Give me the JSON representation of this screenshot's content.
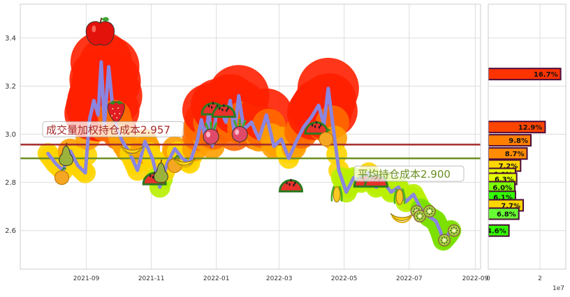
{
  "chart_data": [
    {
      "type": "line",
      "y_ticks": [
        2.6,
        2.8,
        3.0,
        3.2,
        3.4
      ],
      "ylim": [
        2.44,
        3.54
      ],
      "x_ticks": [
        "2021-09",
        "2021-11",
        "2022-01",
        "2022-03",
        "2022-05",
        "2022-07",
        "2022-09"
      ],
      "xlim": [
        "2021-07-01",
        "2022-09-06"
      ],
      "grid": true,
      "series": [
        {
          "role": "price",
          "color": "#8a85e0",
          "x": [
            "2021-07-27",
            "2021-08-03",
            "2021-08-10",
            "2021-08-17",
            "2021-08-24",
            "2021-08-31",
            "2021-09-04",
            "2021-09-08",
            "2021-09-12",
            "2021-09-15",
            "2021-09-18",
            "2021-09-22",
            "2021-09-26",
            "2021-09-30",
            "2021-10-05",
            "2021-10-12",
            "2021-10-19",
            "2021-10-26",
            "2021-11-02",
            "2021-11-09",
            "2021-11-16",
            "2021-11-23",
            "2021-11-30",
            "2021-12-07",
            "2021-12-14",
            "2021-12-18",
            "2021-12-22",
            "2021-12-25",
            "2021-12-28",
            "2022-01-02",
            "2022-01-06",
            "2022-01-10",
            "2022-01-14",
            "2022-01-18",
            "2022-01-22",
            "2022-01-27",
            "2022-02-03",
            "2022-02-10",
            "2022-02-17",
            "2022-02-24",
            "2022-03-03",
            "2022-03-10",
            "2022-03-17",
            "2022-03-24",
            "2022-03-31",
            "2022-04-07",
            "2022-04-12",
            "2022-04-16",
            "2022-04-20",
            "2022-04-26",
            "2022-05-03",
            "2022-05-10",
            "2022-05-17",
            "2022-05-24",
            "2022-05-31",
            "2022-06-07",
            "2022-06-14",
            "2022-06-21",
            "2022-06-28",
            "2022-07-05",
            "2022-07-12",
            "2022-07-19",
            "2022-07-26",
            "2022-07-30",
            "2022-08-02",
            "2022-08-06",
            "2022-08-09"
          ],
          "y": [
            2.92,
            2.88,
            2.85,
            2.93,
            2.87,
            2.84,
            3.06,
            3.14,
            3.08,
            3.3,
            3.04,
            3.28,
            3.1,
            3.02,
            2.97,
            2.92,
            2.85,
            2.97,
            2.9,
            2.78,
            2.88,
            2.94,
            2.9,
            2.88,
            2.97,
            3.06,
            2.98,
            3.1,
            2.95,
            3.12,
            3.09,
            3.05,
            3.14,
            3.0,
            3.16,
            3.02,
            3.05,
            2.98,
            3.08,
            2.95,
            2.98,
            2.9,
            2.97,
            3.03,
            3.07,
            3.12,
            3.04,
            3.19,
            3.05,
            2.85,
            2.76,
            2.82,
            2.8,
            2.84,
            2.78,
            2.8,
            2.76,
            2.78,
            2.72,
            2.75,
            2.69,
            2.66,
            2.64,
            2.6,
            2.56,
            2.58,
            2.6
          ]
        }
      ],
      "reference_lines": [
        {
          "label": "成交量加权持仓成本2.957",
          "value": 2.957,
          "color": "#a52a2a",
          "text_color": "#a52a2a"
        },
        {
          "label": "平均持仓成本2.900",
          "value": 2.9,
          "color": "#6b8e23",
          "text_color": "#6b8e23"
        }
      ],
      "fruit_markers": [
        {
          "icon": "apple-icon",
          "x": "2021-09-14",
          "y": 3.42
        },
        {
          "icon": "strawberry-icon",
          "x": "2021-09-29",
          "y": 3.1
        },
        {
          "icon": "pear-icon",
          "x": "2021-08-13",
          "y": 2.91
        },
        {
          "icon": "orange-icon",
          "x": "2021-08-09",
          "y": 2.82
        },
        {
          "icon": "banana-icon",
          "x": "2021-10-14",
          "y": 2.94
        },
        {
          "icon": "watermelon-icon",
          "x": "2021-11-04",
          "y": 2.81
        },
        {
          "icon": "pear-icon",
          "x": "2021-11-10",
          "y": 2.84
        },
        {
          "icon": "orange-icon",
          "x": "2021-11-23",
          "y": 2.87
        },
        {
          "icon": "banana-icon",
          "x": "2021-12-02",
          "y": 2.89
        },
        {
          "icon": "watermelon-icon",
          "x": "2021-12-29",
          "y": 3.1
        },
        {
          "icon": "watermelon-icon",
          "x": "2022-01-08",
          "y": 3.09
        },
        {
          "icon": "radish-icon",
          "x": "2021-12-27",
          "y": 2.99
        },
        {
          "icon": "radish-icon",
          "x": "2022-01-23",
          "y": 3.0
        },
        {
          "icon": "watermelon-icon",
          "x": "2022-03-12",
          "y": 2.78
        },
        {
          "icon": "watermelon-icon",
          "x": "2022-04-05",
          "y": 3.02
        },
        {
          "icon": "orange-icon",
          "x": "2022-04-14",
          "y": 2.98
        },
        {
          "icon": "corn-icon",
          "x": "2022-04-24",
          "y": 2.75
        },
        {
          "icon": "watermelon-icon",
          "x": "2022-05-21",
          "y": 2.8
        },
        {
          "icon": "watermelon-icon",
          "x": "2022-05-31",
          "y": 2.8
        },
        {
          "icon": "corn-icon",
          "x": "2022-06-22",
          "y": 2.74
        },
        {
          "icon": "banana-icon",
          "x": "2022-06-24",
          "y": 2.66
        },
        {
          "icon": "kiwi-icon",
          "x": "2022-07-08",
          "y": 2.68
        },
        {
          "icon": "kiwi-icon",
          "x": "2022-07-11",
          "y": 2.66
        },
        {
          "icon": "kiwi-icon",
          "x": "2022-07-20",
          "y": 2.68
        },
        {
          "icon": "kiwi-icon",
          "x": "2022-08-03",
          "y": 2.56
        },
        {
          "icon": "kiwi-icon",
          "x": "2022-08-12",
          "y": 2.6
        }
      ]
    },
    {
      "type": "bar",
      "orientation": "horizontal",
      "x_ticks": [
        "0",
        "2"
      ],
      "x_unit_label": "1e7",
      "bars": [
        {
          "y": 3.25,
          "value": 2.8,
          "label": "16.7%",
          "color": "#ff3300"
        },
        {
          "y": 3.03,
          "value": 2.2,
          "label": "12.9%",
          "color": "#ff4500"
        },
        {
          "y": 2.975,
          "value": 1.65,
          "label": "9.8%",
          "color": "#ff7f00"
        },
        {
          "y": 2.92,
          "value": 1.5,
          "label": "8.7%",
          "color": "#ff8c00"
        },
        {
          "y": 2.87,
          "value": 1.25,
          "label": "7.2%",
          "color": "#ffd700"
        },
        {
          "y": 2.835,
          "value": 1.05,
          "label": "6.0%",
          "color": "#e5ff00"
        },
        {
          "y": 2.815,
          "value": 1.1,
          "label": "6.3%",
          "color": "#e5ff00"
        },
        {
          "y": 2.78,
          "value": 1.03,
          "label": "6.0%",
          "color": "#7cff00"
        },
        {
          "y": 2.74,
          "value": 1.05,
          "label": "6.1%",
          "color": "#33ff00"
        },
        {
          "y": 2.705,
          "value": 1.35,
          "label": "7.7%",
          "color": "#ffd700"
        },
        {
          "y": 2.67,
          "value": 1.18,
          "label": "6.8%",
          "color": "#66ff33"
        },
        {
          "y": 2.6,
          "value": 0.8,
          "label": "4.6%",
          "color": "#33ff00"
        }
      ]
    }
  ]
}
